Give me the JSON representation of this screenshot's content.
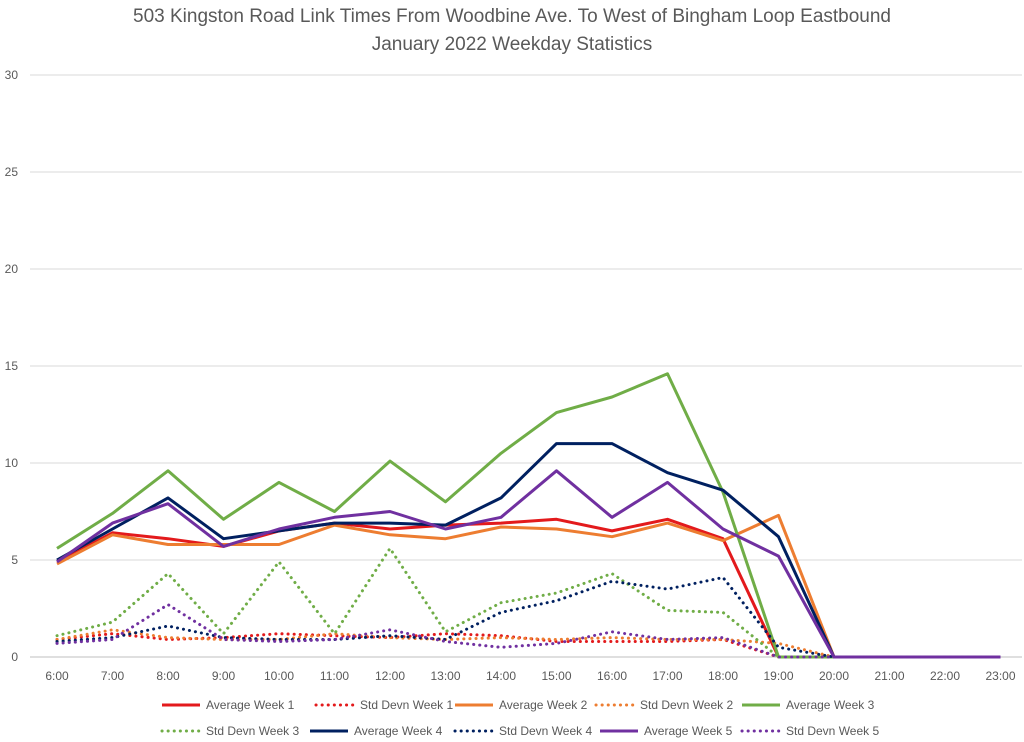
{
  "chart_data": {
    "type": "line",
    "title": "503 Kingston Road Link Times From Woodbine Ave. To West of Bingham Loop Eastbound",
    "subtitle": "January 2022 Weekday Statistics",
    "xlabel": "",
    "ylabel": "",
    "ylim": [
      0,
      30
    ],
    "yticks": [
      0,
      5,
      10,
      15,
      20,
      25,
      30
    ],
    "grid": "horizontal",
    "legend_position": "bottom",
    "categories": [
      "6:00",
      "7:00",
      "8:00",
      "9:00",
      "10:00",
      "11:00",
      "12:00",
      "13:00",
      "14:00",
      "15:00",
      "16:00",
      "17:00",
      "18:00",
      "19:00",
      "20:00",
      "21:00",
      "22:00",
      "23:00"
    ],
    "series": [
      {
        "name": "Average Week 1",
        "color": "#e31a1c",
        "style": "solid",
        "values": [
          4.9,
          6.4,
          6.1,
          5.7,
          6.5,
          6.9,
          6.6,
          6.8,
          6.9,
          7.1,
          6.5,
          7.1,
          6.1,
          0,
          0,
          null,
          null,
          null
        ]
      },
      {
        "name": "Std Devn Week 1",
        "color": "#e31a1c",
        "style": "dotted",
        "values": [
          0.9,
          1.2,
          0.9,
          1.0,
          1.2,
          1.1,
          1.0,
          1.2,
          1.1,
          0.8,
          0.8,
          0.8,
          0.9,
          0,
          0,
          null,
          null,
          null
        ]
      },
      {
        "name": "Average Week 2",
        "color": "#ed7d31",
        "style": "solid",
        "values": [
          4.8,
          6.3,
          5.8,
          5.8,
          5.8,
          6.8,
          6.3,
          6.1,
          6.7,
          6.6,
          6.2,
          6.9,
          6.0,
          7.3,
          0,
          null,
          null,
          null
        ]
      },
      {
        "name": "Std Devn Week 2",
        "color": "#ed7d31",
        "style": "dotted",
        "values": [
          0.9,
          1.4,
          1.0,
          0.9,
          0.9,
          1.2,
          1.0,
          0.9,
          1.0,
          0.9,
          1.0,
          0.9,
          0.9,
          0.7,
          0,
          null,
          null,
          null
        ]
      },
      {
        "name": "Average Week 3",
        "color": "#70ad47",
        "style": "solid",
        "values": [
          5.6,
          7.4,
          9.6,
          7.1,
          9.0,
          7.5,
          10.1,
          8.0,
          10.5,
          12.6,
          13.4,
          14.6,
          8.5,
          0,
          0,
          null,
          null,
          null
        ]
      },
      {
        "name": "Std Devn Week 3",
        "color": "#70ad47",
        "style": "dotted",
        "values": [
          1.1,
          1.8,
          4.3,
          1.2,
          4.9,
          1.2,
          5.6,
          1.3,
          2.8,
          3.3,
          4.3,
          2.4,
          2.3,
          0,
          0,
          null,
          null,
          null
        ]
      },
      {
        "name": "Average Week 4",
        "color": "#002060",
        "style": "solid",
        "values": [
          5.0,
          6.6,
          8.2,
          6.1,
          6.5,
          6.9,
          6.9,
          6.8,
          8.2,
          11.0,
          11.0,
          9.5,
          8.6,
          6.2,
          0,
          0,
          0,
          0
        ]
      },
      {
        "name": "Std Devn Week 4",
        "color": "#002060",
        "style": "dotted",
        "values": [
          0.8,
          1.0,
          1.6,
          1.0,
          0.9,
          0.9,
          1.1,
          0.9,
          2.3,
          2.9,
          3.9,
          3.5,
          4.1,
          0.5,
          0,
          0,
          0,
          0
        ]
      },
      {
        "name": "Average Week 5",
        "color": "#7030a0",
        "style": "solid",
        "values": [
          4.9,
          6.9,
          7.9,
          5.7,
          6.6,
          7.2,
          7.5,
          6.6,
          7.2,
          9.6,
          7.2,
          9.0,
          6.6,
          5.2,
          0,
          0,
          0,
          0
        ]
      },
      {
        "name": "Std Devn Week 5",
        "color": "#7030a0",
        "style": "dotted",
        "values": [
          0.7,
          0.9,
          2.7,
          0.9,
          0.8,
          0.9,
          1.4,
          0.8,
          0.5,
          0.7,
          1.3,
          0.9,
          1.0,
          0,
          0,
          0,
          0,
          0
        ]
      }
    ]
  }
}
